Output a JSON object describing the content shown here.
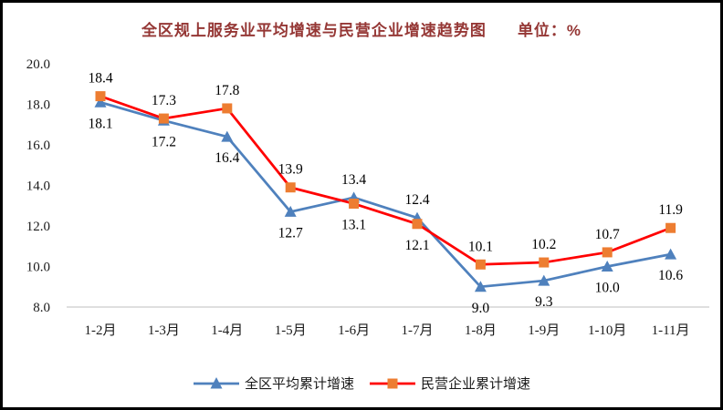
{
  "title": {
    "main": "全区规上服务业平均增速与民营企业增速趋势图",
    "unit": "单位：%"
  },
  "chart_data": {
    "type": "line",
    "categories": [
      "1-2月",
      "1-3月",
      "1-4月",
      "1-5月",
      "1-6月",
      "1-7月",
      "1-8月",
      "1-9月",
      "1-10月",
      "1-11月"
    ],
    "series": [
      {
        "name": "全区平均累计增速",
        "values": [
          18.1,
          17.2,
          16.4,
          12.7,
          13.4,
          12.4,
          9.0,
          9.3,
          10.0,
          10.6
        ],
        "color": "#4F81BD",
        "marker": "triangle"
      },
      {
        "name": "民营企业累计增速",
        "values": [
          18.4,
          17.3,
          17.8,
          13.9,
          13.1,
          12.1,
          10.1,
          10.2,
          10.7,
          11.9
        ],
        "color": "#FF0000",
        "marker": "square",
        "marker_color": "#ED7D31"
      }
    ],
    "ylim": [
      8.0,
      20.0
    ],
    "ytick_step": 2.0,
    "ytick_labels": [
      "20.0",
      "18.0",
      "16.0",
      "14.0",
      "12.0",
      "10.0",
      "8.0"
    ],
    "grid": false,
    "legend_position": "bottom",
    "axis_line_color": "#BFBFBF",
    "label_format": "one-decimal"
  }
}
